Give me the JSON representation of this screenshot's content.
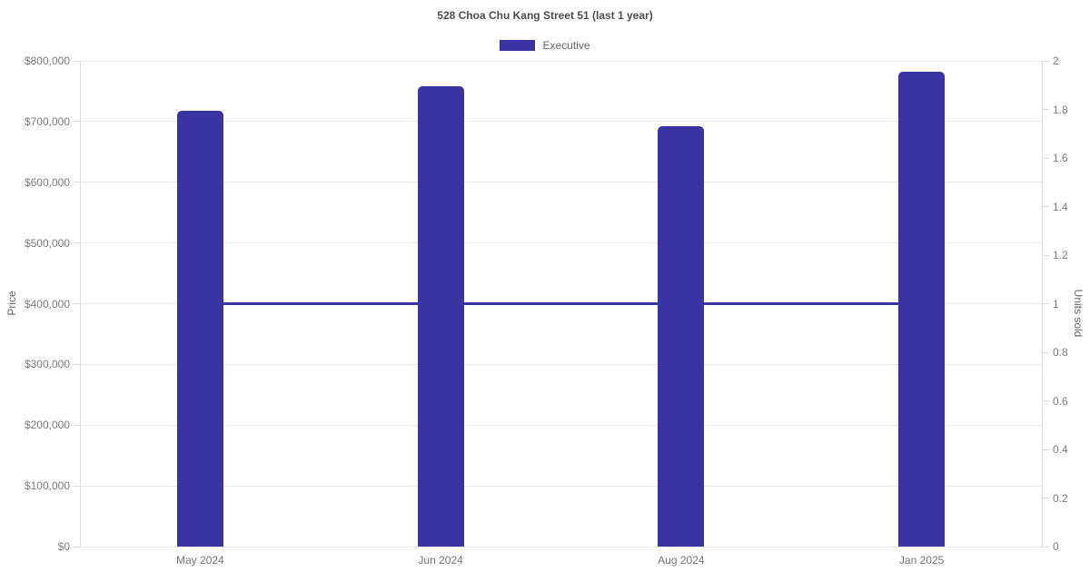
{
  "chart_data": {
    "type": "bar",
    "title": "528 Choa Chu Kang Street 51 (last 1 year)",
    "categories": [
      "May 2024",
      "Jun 2024",
      "Aug 2024",
      "Jan 2025"
    ],
    "series": [
      {
        "name": "Executive",
        "type": "bar",
        "yaxis": "left",
        "color": "#3934a2",
        "values": [
          718000,
          758000,
          692000,
          782000
        ]
      },
      {
        "name": "Units sold",
        "type": "line",
        "yaxis": "right",
        "color": "#3934a2",
        "values": [
          1,
          1,
          1,
          1
        ]
      }
    ],
    "axes": {
      "left": {
        "label": "Price",
        "min": 0,
        "max": 800000,
        "tick_step": 100000,
        "tick_prefix": "$",
        "tick_labels": [
          "$0",
          "$100,000",
          "$200,000",
          "$300,000",
          "$400,000",
          "$500,000",
          "$600,000",
          "$700,000",
          "$800,000"
        ]
      },
      "right": {
        "label": "Units sold",
        "min": 0,
        "max": 2,
        "tick_step": 0.2,
        "tick_labels": [
          "0",
          "0.2",
          "0.4",
          "0.6",
          "0.8",
          "1",
          "1.2",
          "1.4",
          "1.6",
          "1.8",
          "2"
        ]
      }
    },
    "legend_position": "top",
    "grid": "horizontal"
  },
  "colors": {
    "bar": "#3934a2",
    "line": "#3934a2",
    "grid": "#e9e9e9",
    "axis_line": "#dcdcdc",
    "tick_text": "#7b7b7b",
    "title_text": "#4d4d4d",
    "legend_text": "#666666",
    "background": "#ffffff"
  }
}
